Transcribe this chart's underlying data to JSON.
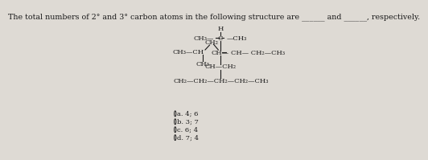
{
  "title": "The total numbers of 2° and 3° carbon atoms in the following structure are ______ and ______, respectively.",
  "title_fontsize": 6.8,
  "bg_color": "#dedad4",
  "text_color": "#1a1a1a",
  "options": [
    "a. 4; 6",
    "b. 3; 7",
    "c. 6; 4",
    "d. 7; 4"
  ]
}
